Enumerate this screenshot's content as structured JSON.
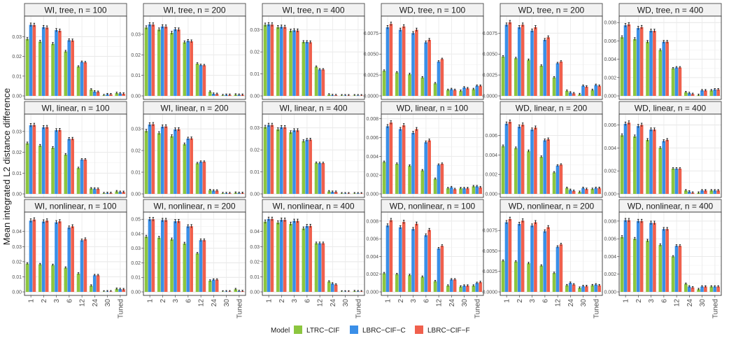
{
  "chart_data": {
    "type": "bar",
    "y_axis_label": "Mean integrated L2 distance difference",
    "categories": [
      "1",
      "2",
      "3",
      "6",
      "12",
      "24",
      "30",
      "Tuned"
    ],
    "legend": {
      "title": "Model",
      "position": "bottom",
      "entries": [
        "LTRC−CIF",
        "LBRC−CIF−C",
        "LBRC−CIF−F"
      ]
    },
    "colors": {
      "LTRC-CIF": "#8CC63F",
      "LBRC-CIF-C": "#3A8FE8",
      "LBRC-CIF-F": "#F0604D"
    },
    "panels": [
      {
        "title": "WI, tree, n = 100",
        "yticks": [
          "0.00",
          "0.01",
          "0.02",
          "0.03"
        ],
        "ymax": 0.039,
        "series": [
          [
            0.0288,
            0.0275,
            0.0264,
            0.0225,
            0.0148,
            0.0032,
            0.0003,
            0.0014
          ],
          [
            0.036,
            0.0348,
            0.0333,
            0.0282,
            0.0172,
            0.0022,
            0.0008,
            0.0012
          ],
          [
            0.0359,
            0.0346,
            0.033,
            0.0281,
            0.017,
            0.002,
            0.0008,
            0.0011
          ]
        ]
      },
      {
        "title": "WI, tree, n = 200",
        "yticks": [
          "0.00",
          "0.01",
          "0.02",
          "0.03"
        ],
        "ymax": 0.0375,
        "series": [
          [
            0.0333,
            0.0323,
            0.0307,
            0.0261,
            0.0157,
            0.002,
            0.0003,
            0.0006
          ],
          [
            0.0348,
            0.0338,
            0.0324,
            0.0268,
            0.015,
            0.001,
            0.0005,
            0.0005
          ],
          [
            0.0347,
            0.0337,
            0.0323,
            0.0266,
            0.0149,
            0.0009,
            0.0005,
            0.0005
          ]
        ]
      },
      {
        "title": "WI, tree, n = 400",
        "yticks": [
          "0.00",
          "0.01",
          "0.02",
          "0.03"
        ],
        "ymax": 0.035,
        "series": [
          [
            0.0323,
            0.0312,
            0.0296,
            0.0245,
            0.0132,
            0.0006,
            0.0002,
            0.0002
          ],
          [
            0.0325,
            0.0314,
            0.0298,
            0.0245,
            0.012,
            0.0003,
            0.0002,
            0.0002
          ],
          [
            0.0324,
            0.0313,
            0.0297,
            0.0244,
            0.012,
            0.0003,
            0.0002,
            0.0002
          ]
        ]
      },
      {
        "title": "WD, tree, n = 100",
        "yticks": [
          "0.0000",
          "0.0025",
          "0.0050",
          "0.0075"
        ],
        "ymax": 0.0092,
        "series": [
          [
            0.003,
            0.0028,
            0.0026,
            0.0022,
            0.0015,
            0.0007,
            0.0006,
            0.0008
          ],
          [
            0.0082,
            0.0079,
            0.0075,
            0.0064,
            0.0041,
            0.0008,
            0.001,
            0.0012
          ],
          [
            0.0086,
            0.0083,
            0.0079,
            0.0067,
            0.0044,
            0.0007,
            0.0009,
            0.0012
          ]
        ]
      },
      {
        "title": "WD, tree, n = 200",
        "yticks": [
          "0.0000",
          "0.0025",
          "0.0050",
          "0.0075"
        ],
        "ymax": 0.0092,
        "series": [
          [
            0.0047,
            0.0045,
            0.0043,
            0.0036,
            0.0022,
            0.0006,
            0.0002,
            0.0007
          ],
          [
            0.0085,
            0.0082,
            0.0078,
            0.0067,
            0.0039,
            0.0004,
            0.0012,
            0.0013
          ],
          [
            0.0088,
            0.0085,
            0.0082,
            0.007,
            0.0041,
            0.0003,
            0.0011,
            0.0012
          ]
        ]
      },
      {
        "title": "WD, tree, n = 400",
        "yticks": [
          "0.000",
          "0.002",
          "0.004",
          "0.006",
          "0.008"
        ],
        "ymax": 0.0084,
        "series": [
          [
            0.0064,
            0.0062,
            0.0059,
            0.005,
            0.003,
            0.0004,
            0.0001,
            0.0006
          ],
          [
            0.0077,
            0.0074,
            0.0071,
            0.0059,
            0.0031,
            0.0003,
            0.0006,
            0.0007
          ],
          [
            0.0078,
            0.0075,
            0.0071,
            0.0059,
            0.0031,
            0.0002,
            0.0006,
            0.0007
          ]
        ]
      },
      {
        "title": "WI, linear, n = 100",
        "yticks": [
          "0.00",
          "0.01",
          "0.02",
          "0.03"
        ],
        "ymax": 0.037,
        "series": [
          [
            0.0243,
            0.0232,
            0.0222,
            0.0189,
            0.0124,
            0.0026,
            0.0003,
            0.0012
          ],
          [
            0.033,
            0.032,
            0.0306,
            0.0264,
            0.0165,
            0.0025,
            0.0004,
            0.0009
          ],
          [
            0.0331,
            0.0321,
            0.0307,
            0.0265,
            0.0165,
            0.0024,
            0.0004,
            0.0009
          ]
        ]
      },
      {
        "title": "WI, linear, n = 200",
        "yticks": [
          "0.00",
          "0.01",
          "0.02",
          "0.03"
        ],
        "ymax": 0.0355,
        "series": [
          [
            0.029,
            0.028,
            0.0266,
            0.0229,
            0.0141,
            0.0017,
            0.0003,
            0.0005
          ],
          [
            0.032,
            0.031,
            0.0297,
            0.0255,
            0.0148,
            0.0015,
            0.0003,
            0.0004
          ],
          [
            0.0321,
            0.0311,
            0.0298,
            0.0256,
            0.0148,
            0.0015,
            0.0003,
            0.0004
          ]
        ]
      },
      {
        "title": "WI, linear, n = 400",
        "yticks": [
          "0.00",
          "0.01",
          "0.02",
          "0.03"
        ],
        "ymax": 0.035,
        "series": [
          [
            0.0304,
            0.0293,
            0.028,
            0.024,
            0.0141,
            0.0011,
            0.0002,
            0.0002
          ],
          [
            0.0313,
            0.0303,
            0.0289,
            0.0246,
            0.014,
            0.0009,
            0.0002,
            0.0002
          ],
          [
            0.0313,
            0.0303,
            0.0289,
            0.0247,
            0.014,
            0.0009,
            0.0002,
            0.0002
          ]
        ]
      },
      {
        "title": "WD, linear, n = 100",
        "yticks": [
          "0.000",
          "0.002",
          "0.004",
          "0.006",
          "0.008"
        ],
        "ymax": 0.0082,
        "series": [
          [
            0.0034,
            0.0032,
            0.003,
            0.0025,
            0.0016,
            0.0006,
            0.0006,
            0.0008
          ],
          [
            0.0072,
            0.0069,
            0.0065,
            0.0055,
            0.0031,
            0.0007,
            0.0006,
            0.0008
          ],
          [
            0.0076,
            0.0073,
            0.0069,
            0.0057,
            0.0032,
            0.0005,
            0.0006,
            0.0007
          ]
        ]
      },
      {
        "title": "WD, linear, n = 200",
        "yticks": [
          "0.000",
          "0.002",
          "0.004",
          "0.006"
        ],
        "ymax": 0.0079,
        "series": [
          [
            0.0049,
            0.0047,
            0.0044,
            0.0038,
            0.0022,
            0.0006,
            0.0002,
            0.0005
          ],
          [
            0.0072,
            0.0069,
            0.0066,
            0.0055,
            0.0029,
            0.0004,
            0.0006,
            0.0006
          ],
          [
            0.0074,
            0.0071,
            0.0068,
            0.0056,
            0.003,
            0.0003,
            0.0005,
            0.0006
          ]
        ]
      },
      {
        "title": "WD, linear, n = 400",
        "yticks": [
          "0.000",
          "0.002",
          "0.004",
          "0.006"
        ],
        "ymax": 0.0067,
        "series": [
          [
            0.0051,
            0.005,
            0.0047,
            0.004,
            0.0022,
            0.0003,
            0.0001,
            0.0003
          ],
          [
            0.0061,
            0.0059,
            0.0056,
            0.0046,
            0.0022,
            0.0002,
            0.0003,
            0.0003
          ],
          [
            0.0062,
            0.006,
            0.0056,
            0.0047,
            0.0022,
            0.0001,
            0.0003,
            0.0003
          ]
        ]
      },
      {
        "title": "WI, nonlinear, n = 100",
        "yticks": [
          "0.00",
          "0.01",
          "0.02",
          "0.03",
          "0.04"
        ],
        "ymax": 0.051,
        "series": [
          [
            0.0187,
            0.0183,
            0.0178,
            0.016,
            0.0121,
            0.0041,
            0.0002,
            0.002
          ],
          [
            0.0472,
            0.0466,
            0.0461,
            0.0426,
            0.0342,
            0.011,
            0.0003,
            0.0018
          ],
          [
            0.0479,
            0.0472,
            0.0467,
            0.0434,
            0.0349,
            0.011,
            0.0003,
            0.0017
          ]
        ]
      },
      {
        "title": "WI, nonlinear, n = 200",
        "yticks": [
          "0.00",
          "0.01",
          "0.02",
          "0.03",
          "0.04",
          "0.05"
        ],
        "ymax": 0.053,
        "series": [
          [
            0.038,
            0.0373,
            0.0362,
            0.0333,
            0.0265,
            0.0077,
            0.0002,
            0.0018
          ],
          [
            0.05,
            0.0494,
            0.0486,
            0.0451,
            0.0356,
            0.0084,
            0.0003,
            0.0005
          ],
          [
            0.05,
            0.0494,
            0.0487,
            0.0452,
            0.0356,
            0.0084,
            0.0003,
            0.0005
          ]
        ]
      },
      {
        "title": "WI, nonlinear, n = 400",
        "yticks": [
          "0.00",
          "0.01",
          "0.02",
          "0.03",
          "0.04"
        ],
        "ymax": 0.051,
        "series": [
          [
            0.0465,
            0.0459,
            0.0451,
            0.042,
            0.0322,
            0.0068,
            0.0002,
            0.0004
          ],
          [
            0.0483,
            0.0477,
            0.047,
            0.0436,
            0.0322,
            0.0055,
            0.0002,
            0.0003
          ],
          [
            0.0483,
            0.0477,
            0.047,
            0.0437,
            0.0322,
            0.0048,
            0.0002,
            0.0003
          ]
        ]
      },
      {
        "title": "WD, nonlinear, n = 100",
        "yticks": [
          "0.000",
          "0.002",
          "0.004",
          "0.006",
          "0.008"
        ],
        "ymax": 0.0087,
        "series": [
          [
            0.0021,
            0.002,
            0.0019,
            0.0017,
            0.0012,
            0.0007,
            0.0006,
            0.0007
          ],
          [
            0.0075,
            0.0073,
            0.0071,
            0.0064,
            0.0049,
            0.0014,
            0.0007,
            0.001
          ],
          [
            0.0081,
            0.0079,
            0.0077,
            0.007,
            0.0052,
            0.0014,
            0.0007,
            0.0011
          ]
        ]
      },
      {
        "title": "WD, nonlinear, n = 200",
        "yticks": [
          "0.0000",
          "0.0025",
          "0.0050",
          "0.0075"
        ],
        "ymax": 0.0094,
        "series": [
          [
            0.0038,
            0.0037,
            0.0035,
            0.0032,
            0.0023,
            0.0008,
            0.0005,
            0.0008
          ],
          [
            0.0085,
            0.0083,
            0.0081,
            0.0074,
            0.0055,
            0.0011,
            0.0007,
            0.0009
          ],
          [
            0.0089,
            0.0087,
            0.0085,
            0.0079,
            0.0058,
            0.0009,
            0.0007,
            0.0008
          ]
        ]
      },
      {
        "title": "WD, nonlinear, n = 400",
        "yticks": [
          "0.000",
          "0.002",
          "0.004",
          "0.006",
          "0.008"
        ],
        "ymax": 0.0087,
        "series": [
          [
            0.0062,
            0.006,
            0.0058,
            0.0053,
            0.004,
            0.0009,
            0.0003,
            0.0006
          ],
          [
            0.0081,
            0.008,
            0.0078,
            0.0071,
            0.0052,
            0.0006,
            0.0006,
            0.0006
          ],
          [
            0.0081,
            0.008,
            0.0078,
            0.0071,
            0.0052,
            0.0005,
            0.0006,
            0.0006
          ]
        ]
      }
    ]
  }
}
